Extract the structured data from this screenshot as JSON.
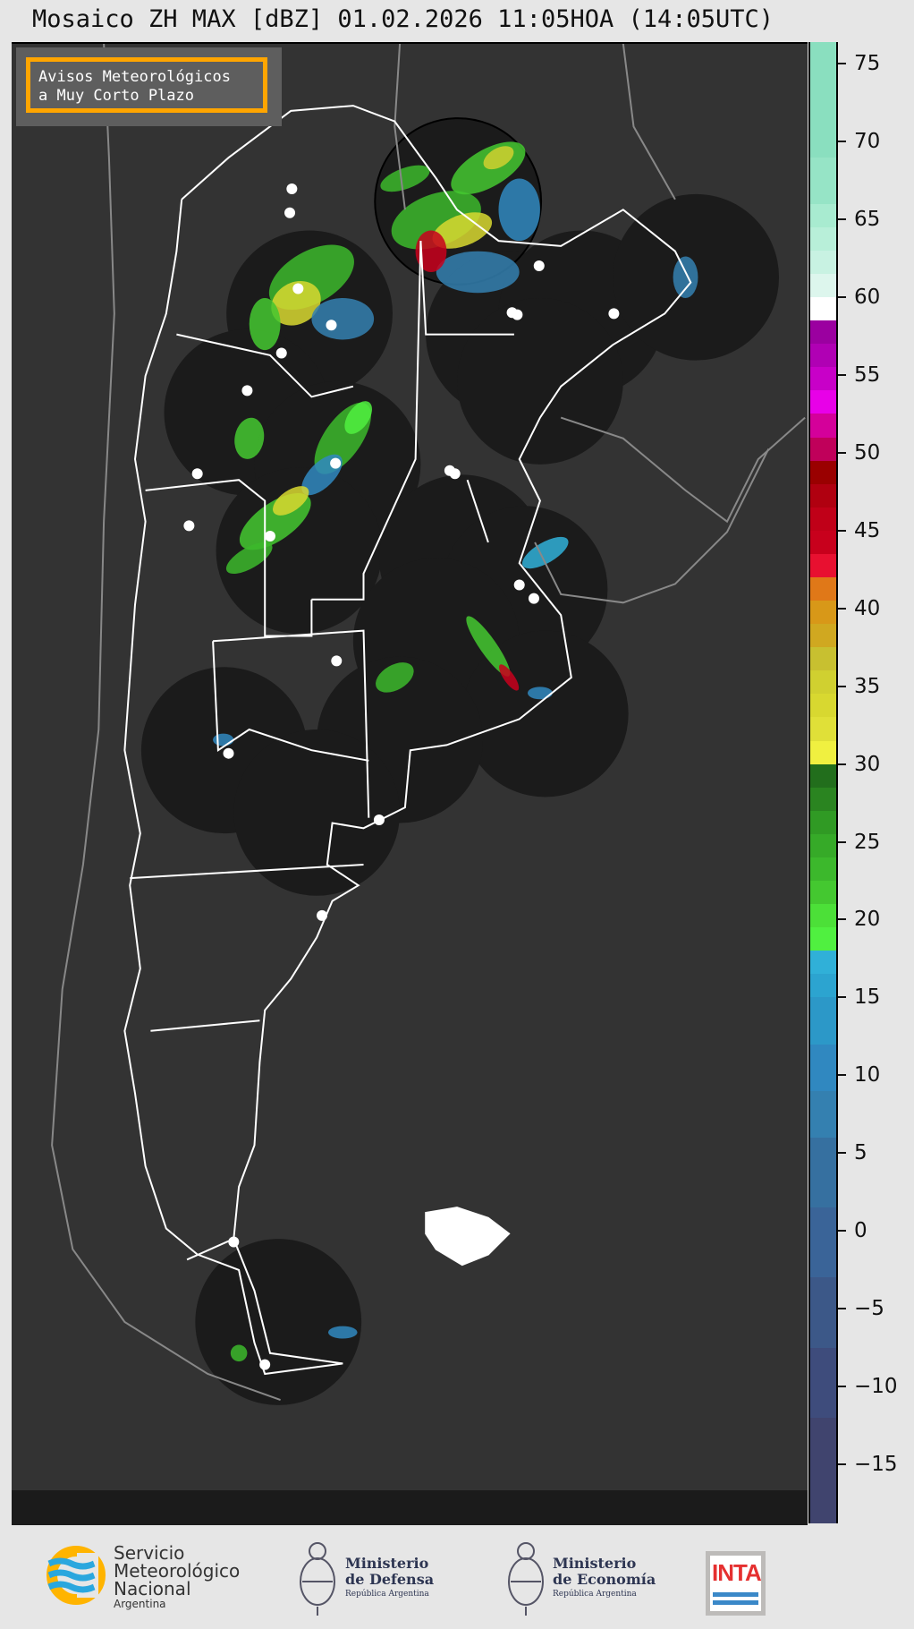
{
  "title": "Mosaico ZH MAX [dBZ] 01.02.2026 11:05HOA (14:05UTC)",
  "legend_box": {
    "line1": "Avisos Meteorológicos",
    "line2": "a Muy Corto Plazo",
    "border_color": "#ffa500"
  },
  "colorbar": {
    "unit": "dBZ",
    "range": [
      -18.8,
      76.4
    ],
    "ticks": [
      "75",
      "70",
      "65",
      "60",
      "55",
      "50",
      "45",
      "40",
      "35",
      "30",
      "25",
      "20",
      "15",
      "10",
      "5",
      "0",
      "−5",
      "−10",
      "−15"
    ],
    "tick_values": [
      75,
      70,
      65,
      60,
      55,
      50,
      45,
      40,
      35,
      30,
      25,
      20,
      15,
      10,
      5,
      0,
      -5,
      -10,
      -15
    ],
    "bins": [
      [
        69,
        76.4,
        "#8adfbf"
      ],
      [
        66,
        69,
        "#96e4c6"
      ],
      [
        64.5,
        66,
        "#a8ebd0"
      ],
      [
        63,
        64.5,
        "#b8efd9"
      ],
      [
        61.5,
        63,
        "#c8f2e2"
      ],
      [
        60,
        61.5,
        "#ddf6ed"
      ],
      [
        58.5,
        60,
        "#ffffff"
      ],
      [
        57,
        58.5,
        "#9b00a0"
      ],
      [
        55.5,
        57,
        "#b000b4"
      ],
      [
        54,
        55.5,
        "#c800c8"
      ],
      [
        52.5,
        54,
        "#e800e8"
      ],
      [
        51,
        52.5,
        "#d4009a"
      ],
      [
        49.5,
        51,
        "#c0005a"
      ],
      [
        48,
        49.5,
        "#9a0000"
      ],
      [
        46.5,
        48,
        "#b00010"
      ],
      [
        45,
        46.5,
        "#c00018"
      ],
      [
        43.5,
        45,
        "#c8001c"
      ],
      [
        42,
        43.5,
        "#e81030"
      ],
      [
        40.5,
        42,
        "#e07818"
      ],
      [
        39,
        40.5,
        "#d89818"
      ],
      [
        37.5,
        39,
        "#d0a820"
      ],
      [
        36,
        37.5,
        "#c8c030"
      ],
      [
        34.5,
        36,
        "#d0d030"
      ],
      [
        33,
        34.5,
        "#d8d830"
      ],
      [
        31.5,
        33,
        "#e0e038"
      ],
      [
        30,
        31.5,
        "#f0f040"
      ],
      [
        28.5,
        30,
        "#226e1c"
      ],
      [
        27,
        28.5,
        "#2a8420"
      ],
      [
        25.5,
        27,
        "#309a24"
      ],
      [
        24,
        25.5,
        "#36aa28"
      ],
      [
        22.5,
        24,
        "#3cb82c"
      ],
      [
        21,
        22.5,
        "#44c830"
      ],
      [
        19.5,
        21,
        "#4ce038"
      ],
      [
        18,
        19.5,
        "#50f040"
      ],
      [
        16.5,
        18,
        "#30b0d8"
      ],
      [
        15,
        16.5,
        "#2ca4d0"
      ],
      [
        12,
        15,
        "#2c98c8"
      ],
      [
        9,
        12,
        "#3088c0"
      ],
      [
        6,
        9,
        "#3480b0"
      ],
      [
        1.5,
        6,
        "#3670a0"
      ],
      [
        -3,
        1.5,
        "#3a6498"
      ],
      [
        -7.5,
        -3,
        "#3c5888"
      ],
      [
        -12,
        -7.5,
        "#3e4c7c"
      ],
      [
        -18.8,
        -12,
        "#40446e"
      ]
    ]
  },
  "map": {
    "background": "#333333",
    "radar_coverage": "#1b1b1b",
    "border_color": "#ffffff",
    "coast_color": "#888888"
  },
  "footer": {
    "smn": {
      "line1": "Servicio",
      "line2": "Meteorológico",
      "line3": "Nacional",
      "line4": "Argentina"
    },
    "defensa": {
      "line1": "Ministerio",
      "line2": "de Defensa",
      "line3": "República Argentina"
    },
    "economia": {
      "line1": "Ministerio",
      "line2": "de Economía",
      "line3": "República Argentina"
    },
    "inta": {
      "label": "INTA"
    }
  }
}
